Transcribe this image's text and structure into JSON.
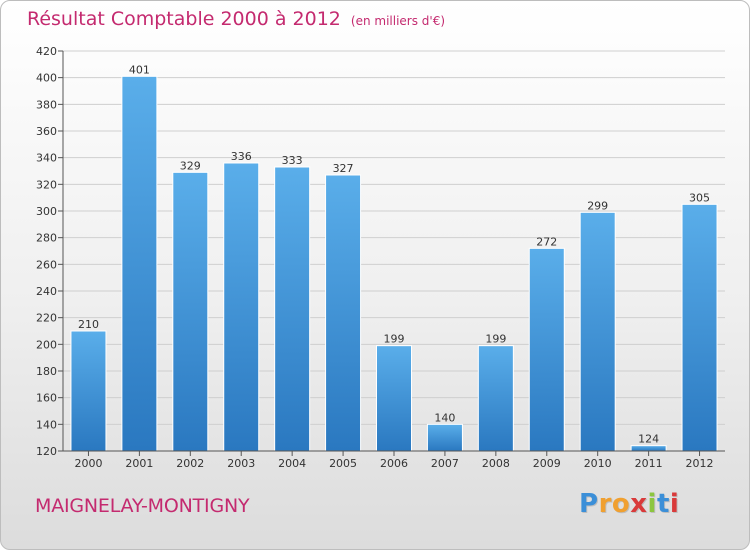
{
  "header": {
    "title": "Résultat Comptable 2000 à 2012",
    "subtitle": "(en milliers d'€)"
  },
  "footer": {
    "commune": "MAIGNELAY-MONTIGNY",
    "brand_letters": [
      "P",
      "r",
      "o",
      "x",
      "i",
      "t",
      "i"
    ]
  },
  "colors": {
    "bar_top": "#5aaeea",
    "bar_bottom": "#2a78c0",
    "title": "#c42a6f",
    "brand": [
      "#3b8fd8",
      "#f0a030",
      "#f0a030",
      "#d93a3a",
      "#8cc63f",
      "#3b8fd8",
      "#d93a3a"
    ]
  },
  "chart_data": {
    "type": "bar",
    "title": "Résultat Comptable 2000 à 2012",
    "xlabel": "",
    "ylabel": "",
    "categories": [
      "2000",
      "2001",
      "2002",
      "2003",
      "2004",
      "2005",
      "2006",
      "2007",
      "2008",
      "2009",
      "2010",
      "2011",
      "2012"
    ],
    "values": [
      210,
      401,
      329,
      336,
      333,
      327,
      199,
      140,
      199,
      272,
      299,
      124,
      305
    ],
    "ylim": [
      120,
      420
    ],
    "yticks": [
      120,
      140,
      160,
      180,
      200,
      220,
      240,
      260,
      280,
      300,
      320,
      340,
      360,
      380,
      400,
      420
    ],
    "grid": true
  }
}
